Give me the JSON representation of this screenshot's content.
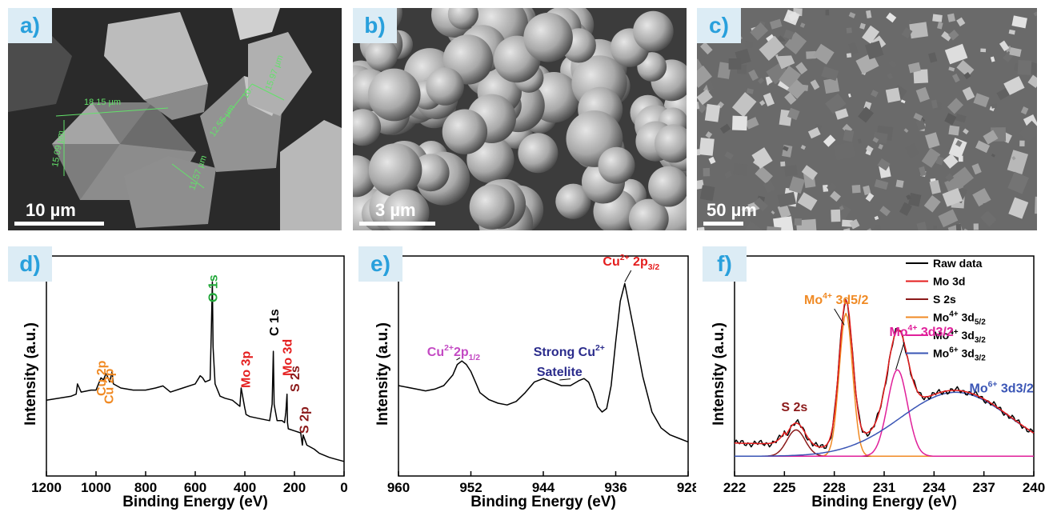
{
  "panels": {
    "a": {
      "tag": "a)",
      "scale": "10 µm",
      "measurements": [
        "18.15 µm",
        "15.09 µm",
        "12.55 µm",
        "10.",
        "15.97 µm",
        "11.57 µm"
      ]
    },
    "b": {
      "tag": "b)",
      "scale": "3 µm"
    },
    "c": {
      "tag": "c)",
      "scale": "50 µm"
    },
    "d": {
      "tag": "d)"
    },
    "e": {
      "tag": "e)"
    },
    "f": {
      "tag": "f)"
    }
  },
  "colors": {
    "green": "#22a83a",
    "orange": "#f08a24",
    "red": "#e41d1d",
    "darkred": "#8b1a1a",
    "magenta": "#e0209a",
    "purple": "#c349c3",
    "navy": "#2b2c8c",
    "blue": "#3a55b5",
    "tag": "#29a0dc"
  },
  "chart_data": [
    {
      "id": "d",
      "type": "line",
      "xlabel": "Binding Energy (eV)",
      "ylabel": "Intensity (a.u.)",
      "xlim": [
        1200,
        0
      ],
      "ylim": [
        0,
        100
      ],
      "reversed_x": true,
      "xticks": [
        1200,
        1000,
        800,
        600,
        400,
        200,
        0
      ],
      "series": [
        {
          "x": [
            1200,
            1150,
            1100,
            1080,
            1075,
            1060,
            1020,
            1000,
            990,
            980,
            970,
            960,
            955,
            945,
            935,
            930,
            900,
            850,
            800,
            760,
            730,
            700,
            650,
            600,
            580,
            570,
            560,
            540,
            535,
            531,
            528,
            520,
            500,
            480,
            450,
            420,
            415,
            400,
            398,
            395,
            380,
            340,
            300,
            290,
            285,
            282,
            270,
            250,
            240,
            235,
            230,
            228,
            225,
            200,
            175,
            168,
            165,
            150,
            120,
            100,
            60,
            30,
            0
          ],
          "y": [
            34,
            35,
            36,
            37,
            42,
            38,
            39,
            39,
            42,
            45,
            44,
            47,
            46,
            43,
            48,
            42,
            40,
            39,
            39,
            40,
            41,
            38,
            40,
            42,
            46,
            45,
            43,
            44,
            68,
            92,
            60,
            42,
            36,
            35,
            34,
            31,
            40,
            30,
            29,
            27,
            26,
            25,
            24,
            32,
            58,
            32,
            24,
            24,
            23,
            28,
            37,
            23,
            20,
            19,
            18,
            12,
            17,
            12,
            10,
            8,
            6,
            5,
            4
          ]
        }
      ],
      "annotations": [
        {
          "text": "Cu 2p",
          "x": 980,
          "color": "orange"
        },
        {
          "text": "Cu 2p",
          "x": 950,
          "color": "orange"
        },
        {
          "text": "O 1s",
          "x": 531,
          "color": "green"
        },
        {
          "text": "C 1s",
          "x": 284,
          "color": "black"
        },
        {
          "text": "Mo 3p",
          "x": 398,
          "color": "red"
        },
        {
          "text": "Mo 3d",
          "x": 230,
          "color": "red"
        },
        {
          "text": "S 2s",
          "x": 226,
          "color": "darkred"
        },
        {
          "text": "S 2p",
          "x": 163,
          "color": "darkred"
        }
      ]
    },
    {
      "id": "e",
      "type": "line",
      "xlabel": "Binding Energy (eV)",
      "ylabel": "Intensity (a.u.)",
      "xlim": [
        960,
        928
      ],
      "ylim": [
        0,
        100
      ],
      "reversed_x": true,
      "xticks": [
        960,
        952,
        944,
        936,
        928
      ],
      "series": [
        {
          "x": [
            960,
            958,
            957,
            956,
            955,
            954,
            953.5,
            953,
            952.5,
            952,
            951.5,
            951,
            950,
            949,
            948,
            947,
            946,
            945,
            944,
            943,
            942,
            941,
            940,
            939.5,
            939,
            938.5,
            938,
            937.5,
            937,
            936.5,
            936,
            935.5,
            935,
            934,
            933,
            932,
            931,
            930,
            929,
            928
          ],
          "y": [
            40,
            38,
            37,
            38,
            40,
            46,
            52,
            54,
            52,
            48,
            42,
            36,
            32,
            30,
            29,
            31,
            36,
            42,
            44,
            42,
            40,
            40,
            43,
            44,
            42,
            36,
            28,
            25,
            27,
            40,
            65,
            88,
            98,
            72,
            45,
            25,
            16,
            12,
            10,
            8
          ]
        }
      ],
      "annotations": [
        {
          "text": "Cu",
          "sup": "2+",
          "sub": "2p",
          "sub2": "1/2",
          "color": "purple",
          "x": 953.2
        },
        {
          "text": "Strong Cu",
          "sup": "2+",
          "text2": "Satelite",
          "color": "navy",
          "x": 941.5
        },
        {
          "text": "Cu",
          "sup": "2+",
          "sub": " 2p",
          "sub2": "3/2",
          "color": "red",
          "x": 935
        }
      ]
    },
    {
      "id": "f",
      "type": "line",
      "xlabel": "Binding Energy (eV)",
      "ylabel": "Intensity (a.u.)",
      "xlim": [
        222,
        240
      ],
      "ylim": [
        0,
        100
      ],
      "xticks": [
        222,
        225,
        228,
        231,
        234,
        237,
        240
      ],
      "legend": {
        "position": "top-right",
        "entries": [
          {
            "label": "Raw data",
            "color": "#000000"
          },
          {
            "label": "Mo 3d",
            "color": "#e41d1d"
          },
          {
            "label": "S 2s",
            "color": "#8b1a1a"
          },
          {
            "label": "Mo",
            "sup": "4+",
            "tail": " 3d",
            "sub": "5/2",
            "color": "#f08a24"
          },
          {
            "label": "Mo",
            "sup": "4+",
            "tail": " 3d",
            "sub": "3/2",
            "color": "#e0209a"
          },
          {
            "label": "Mo",
            "sup": "6+",
            "tail": " 3d",
            "sub": "3/2",
            "color": "#3a55b5"
          }
        ]
      },
      "components": [
        {
          "name": "S 2s",
          "type": "gauss",
          "center": 225.7,
          "amp": 14,
          "sigma": 0.55,
          "color": "#8b1a1a"
        },
        {
          "name": "Mo4+ 3d5/2",
          "type": "gauss",
          "center": 228.7,
          "amp": 76,
          "sigma": 0.4,
          "color": "#f08a24"
        },
        {
          "name": "Mo4+ 3d3/2",
          "type": "gauss",
          "center": 231.8,
          "amp": 46,
          "sigma": 0.6,
          "color": "#e0209a"
        },
        {
          "name": "Mo6+ 3d3/2",
          "type": "gauss",
          "center": 235.3,
          "amp": 34,
          "sigma": 3.3,
          "color": "#3a55b5"
        }
      ],
      "baseline": {
        "start": 6,
        "end": 2,
        "step_at": 225.0,
        "step": 3
      },
      "annotations": [
        {
          "text": "S 2s",
          "color": "darkred",
          "x": 225.7
        },
        {
          "text": "Mo",
          "sup": "4+",
          "tail": " 3d",
          "sub": "5/2",
          "color": "orange",
          "x": 228.7
        },
        {
          "text": "Mo",
          "sup": "4+",
          "tail": " 3d",
          "sub": "3/2",
          "color": "magenta",
          "x": 231.8
        },
        {
          "text": "Mo",
          "sup": "6+",
          "tail": " 3d",
          "sub": "3/2",
          "color": "blue",
          "x": 237
        }
      ]
    }
  ]
}
